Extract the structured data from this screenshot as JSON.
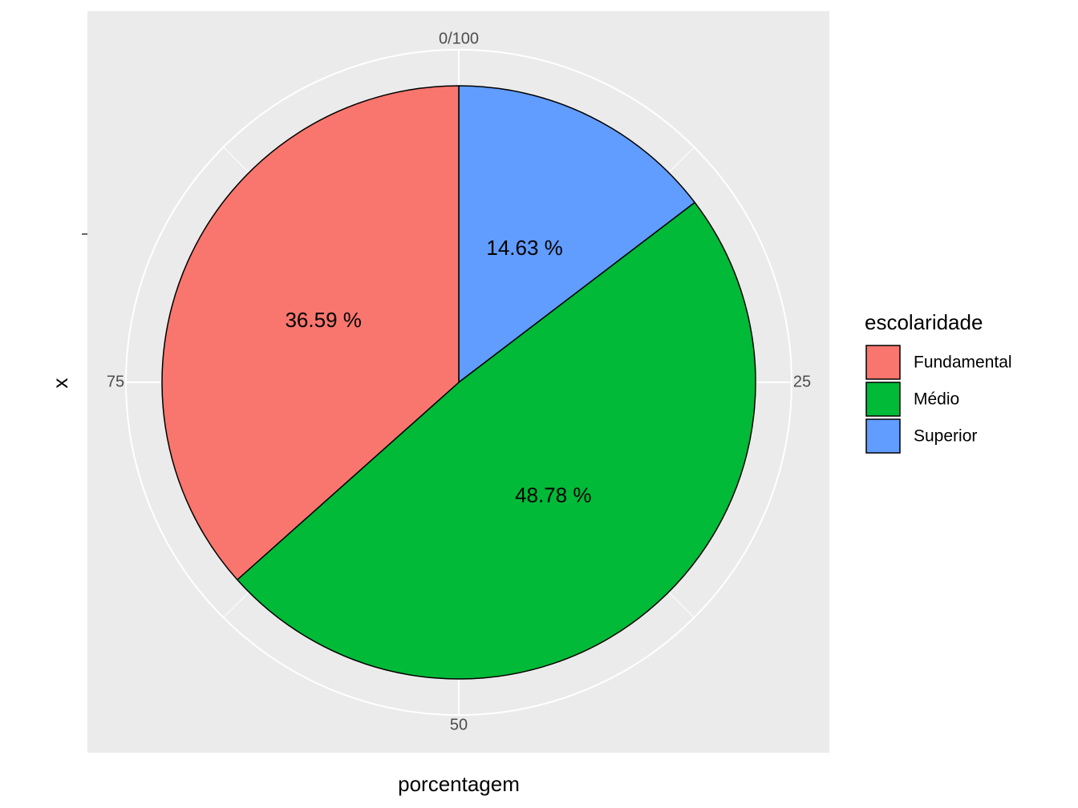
{
  "chart_data": {
    "type": "pie",
    "xlabel": "porcentagem",
    "ylabel": "x",
    "angular_ticks": [
      {
        "label": "0/100",
        "value": 0
      },
      {
        "label": "25",
        "value": 25
      },
      {
        "label": "50",
        "value": 50
      },
      {
        "label": "75",
        "value": 75
      }
    ],
    "legend": {
      "title": "escolaridade",
      "position": "right"
    },
    "slices": [
      {
        "category": "Superior",
        "value": 14.63,
        "label": "14.63 %",
        "color": "#619CFF"
      },
      {
        "category": "Médio",
        "value": 48.78,
        "label": "48.78 %",
        "color": "#00BA38"
      },
      {
        "category": "Fundamental",
        "value": 36.59,
        "label": "36.59 %",
        "color": "#F8766D"
      }
    ],
    "legend_order": [
      "Fundamental",
      "Médio",
      "Superior"
    ],
    "panel_background": "#EBEBEB",
    "grid_color": "#FFFFFF",
    "slice_border_color": "#000000"
  }
}
